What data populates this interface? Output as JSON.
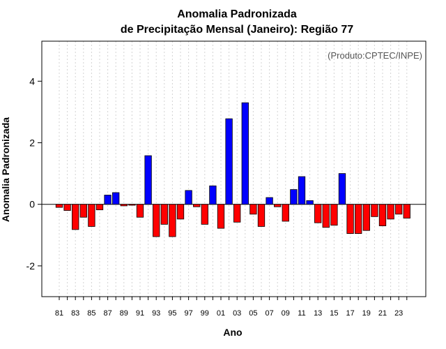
{
  "chart_data": {
    "type": "bar",
    "title": [
      "Anomalia Padronizada",
      "de Precipitação Mensal (Janeiro): Região 77"
    ],
    "annotation": "(Produto:CPTEC/INPE)",
    "xlabel": "Ano",
    "ylabel": "Anomalia Padronizada",
    "ylim": [
      -3.0,
      5.3
    ],
    "yticks": [
      -2,
      0,
      2,
      4
    ],
    "x_tick_labels": [
      "81",
      "83",
      "85",
      "87",
      "89",
      "91",
      "93",
      "95",
      "97",
      "99",
      "01",
      "03",
      "05",
      "07",
      "09",
      "11",
      "13",
      "15",
      "17",
      "19",
      "21",
      "23"
    ],
    "categories": [
      "1981",
      "1982",
      "1983",
      "1984",
      "1985",
      "1986",
      "1987",
      "1988",
      "1989",
      "1990",
      "1991",
      "1992",
      "1993",
      "1994",
      "1995",
      "1996",
      "1997",
      "1998",
      "1999",
      "2000",
      "2001",
      "2002",
      "2003",
      "2004",
      "2005",
      "2006",
      "2007",
      "2008",
      "2009",
      "2010",
      "2011",
      "2012",
      "2013",
      "2014",
      "2015",
      "2016",
      "2017",
      "2018",
      "2019",
      "2020",
      "2021",
      "2022",
      "2023",
      "2024"
    ],
    "values": [
      -0.1,
      -0.2,
      -0.82,
      -0.42,
      -0.72,
      -0.18,
      0.3,
      0.38,
      -0.05,
      -0.03,
      -0.42,
      1.58,
      -1.05,
      -0.65,
      -1.05,
      -0.48,
      0.45,
      -0.08,
      -0.65,
      0.6,
      -0.78,
      2.78,
      -0.58,
      3.3,
      -0.32,
      -0.72,
      0.22,
      -0.08,
      -0.55,
      0.48,
      0.9,
      0.12,
      -0.6,
      -0.75,
      -0.68,
      1.0,
      -0.95,
      -0.95,
      -0.85,
      -0.4,
      -0.7,
      -0.48,
      -0.32,
      -0.45
    ],
    "colors": {
      "positive": "#0000ff",
      "negative": "#ff0000",
      "grid": "#d3d3d3"
    },
    "grid": true,
    "zero_line": true
  }
}
